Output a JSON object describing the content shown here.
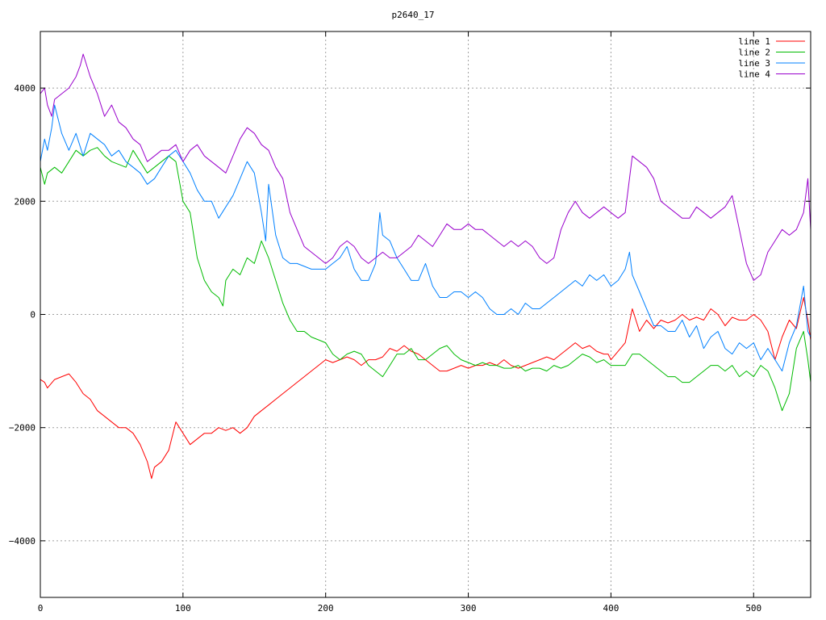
{
  "chart_data": {
    "type": "line",
    "title": "p2640_17",
    "xlabel": "",
    "ylabel": "",
    "xlim": [
      0,
      540
    ],
    "ylim": [
      -5000,
      5000
    ],
    "x_ticks": [
      0,
      100,
      200,
      300,
      400,
      500
    ],
    "y_ticks": [
      -4000,
      -2000,
      0,
      2000,
      4000
    ],
    "grid": true,
    "legend_position": "top-right",
    "series": [
      {
        "name": "line 1",
        "color": "#ff0000",
        "x": [
          0,
          3,
          5,
          10,
          15,
          20,
          25,
          30,
          35,
          40,
          45,
          50,
          55,
          60,
          65,
          70,
          75,
          78,
          80,
          85,
          90,
          92,
          95,
          100,
          105,
          110,
          115,
          120,
          125,
          130,
          135,
          140,
          145,
          150,
          155,
          160,
          165,
          170,
          175,
          180,
          185,
          190,
          195,
          200,
          205,
          210,
          215,
          220,
          225,
          230,
          235,
          240,
          245,
          250,
          255,
          260,
          265,
          270,
          275,
          280,
          285,
          290,
          295,
          300,
          305,
          310,
          315,
          320,
          325,
          330,
          335,
          340,
          345,
          350,
          355,
          360,
          365,
          370,
          375,
          380,
          385,
          390,
          395,
          398,
          400,
          405,
          410,
          415,
          420,
          425,
          430,
          435,
          440,
          445,
          450,
          455,
          460,
          465,
          470,
          475,
          480,
          485,
          490,
          495,
          500,
          505,
          510,
          515,
          520,
          525,
          530,
          535,
          538,
          540
        ],
        "values": [
          -1150,
          -1200,
          -1300,
          -1150,
          -1100,
          -1050,
          -1200,
          -1400,
          -1500,
          -1700,
          -1800,
          -1900,
          -2000,
          -2000,
          -2100,
          -2300,
          -2600,
          -2900,
          -2700,
          -2600,
          -2400,
          -2200,
          -1900,
          -2100,
          -2300,
          -2200,
          -2100,
          -2100,
          -2000,
          -2050,
          -2000,
          -2100,
          -2000,
          -1800,
          -1700,
          -1600,
          -1500,
          -1400,
          -1300,
          -1200,
          -1100,
          -1000,
          -900,
          -800,
          -850,
          -800,
          -750,
          -800,
          -900,
          -800,
          -800,
          -750,
          -600,
          -650,
          -550,
          -650,
          -700,
          -800,
          -900,
          -1000,
          -1000,
          -950,
          -900,
          -950,
          -900,
          -900,
          -850,
          -900,
          -800,
          -900,
          -950,
          -900,
          -850,
          -800,
          -750,
          -800,
          -700,
          -600,
          -500,
          -600,
          -550,
          -650,
          -700,
          -700,
          -800,
          -650,
          -500,
          100,
          -300,
          -100,
          -250,
          -100,
          -150,
          -100,
          0,
          -100,
          -50,
          -100,
          100,
          0,
          -200,
          -50,
          -100,
          -100,
          0,
          -100,
          -300,
          -800,
          -400,
          -100,
          -250,
          300,
          -100,
          -450
        ]
      },
      {
        "name": "line 2",
        "color": "#00bb00",
        "x": [
          0,
          3,
          5,
          10,
          15,
          20,
          25,
          30,
          35,
          40,
          45,
          50,
          55,
          60,
          65,
          70,
          75,
          80,
          85,
          90,
          95,
          100,
          105,
          110,
          115,
          120,
          125,
          128,
          130,
          135,
          140,
          145,
          150,
          155,
          160,
          165,
          170,
          175,
          180,
          185,
          190,
          195,
          200,
          205,
          210,
          215,
          220,
          225,
          230,
          235,
          240,
          245,
          250,
          255,
          260,
          265,
          270,
          275,
          280,
          285,
          290,
          295,
          300,
          305,
          310,
          315,
          320,
          325,
          330,
          335,
          340,
          345,
          350,
          355,
          360,
          365,
          370,
          375,
          380,
          385,
          390,
          395,
          400,
          405,
          410,
          415,
          420,
          425,
          430,
          435,
          440,
          445,
          450,
          455,
          460,
          465,
          470,
          475,
          480,
          485,
          490,
          495,
          500,
          505,
          510,
          515,
          520,
          525,
          530,
          535,
          538,
          540
        ],
        "values": [
          2600,
          2300,
          2500,
          2600,
          2500,
          2700,
          2900,
          2800,
          2900,
          2950,
          2800,
          2700,
          2650,
          2600,
          2900,
          2700,
          2500,
          2600,
          2700,
          2800,
          2700,
          2000,
          1800,
          1000,
          600,
          400,
          300,
          150,
          600,
          800,
          700,
          1000,
          900,
          1300,
          1000,
          600,
          200,
          -100,
          -300,
          -300,
          -400,
          -450,
          -500,
          -700,
          -800,
          -700,
          -650,
          -700,
          -900,
          -1000,
          -1100,
          -900,
          -700,
          -700,
          -600,
          -800,
          -800,
          -700,
          -600,
          -550,
          -700,
          -800,
          -850,
          -900,
          -850,
          -900,
          -900,
          -950,
          -950,
          -900,
          -1000,
          -950,
          -950,
          -1000,
          -900,
          -950,
          -900,
          -800,
          -700,
          -750,
          -850,
          -800,
          -900,
          -900,
          -900,
          -700,
          -700,
          -800,
          -900,
          -1000,
          -1100,
          -1100,
          -1200,
          -1200,
          -1100,
          -1000,
          -900,
          -900,
          -1000,
          -900,
          -1100,
          -1000,
          -1100,
          -900,
          -1000,
          -1300,
          -1700,
          -1400,
          -600,
          -300,
          -800,
          -1200
        ]
      },
      {
        "name": "line 3",
        "color": "#0080ff",
        "x": [
          0,
          3,
          5,
          8,
          10,
          15,
          20,
          25,
          30,
          35,
          40,
          45,
          50,
          55,
          60,
          65,
          70,
          75,
          80,
          85,
          90,
          95,
          100,
          105,
          110,
          115,
          120,
          125,
          130,
          135,
          140,
          145,
          150,
          155,
          158,
          160,
          165,
          170,
          175,
          180,
          185,
          190,
          195,
          200,
          205,
          210,
          215,
          220,
          225,
          230,
          235,
          238,
          240,
          245,
          250,
          255,
          260,
          265,
          270,
          275,
          280,
          285,
          290,
          295,
          300,
          305,
          310,
          315,
          320,
          325,
          330,
          335,
          340,
          345,
          350,
          355,
          360,
          365,
          370,
          375,
          380,
          385,
          390,
          395,
          400,
          405,
          410,
          413,
          415,
          420,
          425,
          430,
          435,
          440,
          445,
          450,
          455,
          460,
          465,
          470,
          475,
          480,
          485,
          490,
          495,
          500,
          505,
          510,
          515,
          520,
          525,
          530,
          535,
          538,
          540
        ],
        "values": [
          2700,
          3100,
          2900,
          3300,
          3700,
          3200,
          2900,
          3200,
          2800,
          3200,
          3100,
          3000,
          2800,
          2900,
          2700,
          2600,
          2500,
          2300,
          2400,
          2600,
          2800,
          2900,
          2700,
          2500,
          2200,
          2000,
          2000,
          1700,
          1900,
          2100,
          2400,
          2700,
          2500,
          1800,
          1300,
          2300,
          1400,
          1000,
          900,
          900,
          850,
          800,
          800,
          800,
          900,
          1000,
          1200,
          800,
          600,
          600,
          900,
          1800,
          1400,
          1300,
          1000,
          800,
          600,
          600,
          900,
          500,
          300,
          300,
          400,
          400,
          300,
          400,
          300,
          100,
          0,
          0,
          100,
          0,
          200,
          100,
          100,
          200,
          300,
          400,
          500,
          600,
          500,
          700,
          600,
          700,
          500,
          600,
          800,
          1100,
          700,
          400,
          100,
          -200,
          -200,
          -300,
          -300,
          -100,
          -400,
          -200,
          -600,
          -400,
          -300,
          -600,
          -700,
          -500,
          -600,
          -500,
          -800,
          -600,
          -800,
          -1000,
          -500,
          -200,
          500,
          -300,
          -400
        ]
      },
      {
        "name": "line 4",
        "color": "#9900cc",
        "x": [
          0,
          3,
          5,
          8,
          10,
          15,
          20,
          25,
          28,
          30,
          35,
          40,
          45,
          50,
          55,
          60,
          65,
          70,
          75,
          80,
          85,
          90,
          95,
          100,
          105,
          110,
          115,
          120,
          125,
          130,
          135,
          140,
          145,
          150,
          155,
          160,
          165,
          170,
          175,
          180,
          185,
          190,
          195,
          200,
          205,
          210,
          215,
          220,
          225,
          230,
          235,
          240,
          245,
          250,
          255,
          260,
          265,
          270,
          275,
          280,
          285,
          290,
          295,
          300,
          305,
          310,
          315,
          320,
          325,
          330,
          335,
          340,
          345,
          350,
          355,
          360,
          365,
          370,
          375,
          380,
          385,
          390,
          395,
          400,
          405,
          410,
          415,
          420,
          425,
          430,
          435,
          440,
          445,
          450,
          455,
          460,
          465,
          470,
          475,
          480,
          485,
          490,
          495,
          500,
          505,
          510,
          515,
          520,
          525,
          530,
          535,
          538,
          540
        ],
        "values": [
          3900,
          4000,
          3700,
          3500,
          3800,
          3900,
          4000,
          4200,
          4400,
          4600,
          4200,
          3900,
          3500,
          3700,
          3400,
          3300,
          3100,
          3000,
          2700,
          2800,
          2900,
          2900,
          3000,
          2700,
          2900,
          3000,
          2800,
          2700,
          2600,
          2500,
          2800,
          3100,
          3300,
          3200,
          3000,
          2900,
          2600,
          2400,
          1800,
          1500,
          1200,
          1100,
          1000,
          900,
          1000,
          1200,
          1300,
          1200,
          1000,
          900,
          1000,
          1100,
          1000,
          1000,
          1100,
          1200,
          1400,
          1300,
          1200,
          1400,
          1600,
          1500,
          1500,
          1600,
          1500,
          1500,
          1400,
          1300,
          1200,
          1300,
          1200,
          1300,
          1200,
          1000,
          900,
          1000,
          1500,
          1800,
          2000,
          1800,
          1700,
          1800,
          1900,
          1800,
          1700,
          1800,
          2800,
          2700,
          2600,
          2400,
          2000,
          1900,
          1800,
          1700,
          1700,
          1900,
          1800,
          1700,
          1800,
          1900,
          2100,
          1500,
          900,
          600,
          700,
          1100,
          1300,
          1500,
          1400,
          1500,
          1800,
          2400,
          1500
        ]
      }
    ]
  }
}
